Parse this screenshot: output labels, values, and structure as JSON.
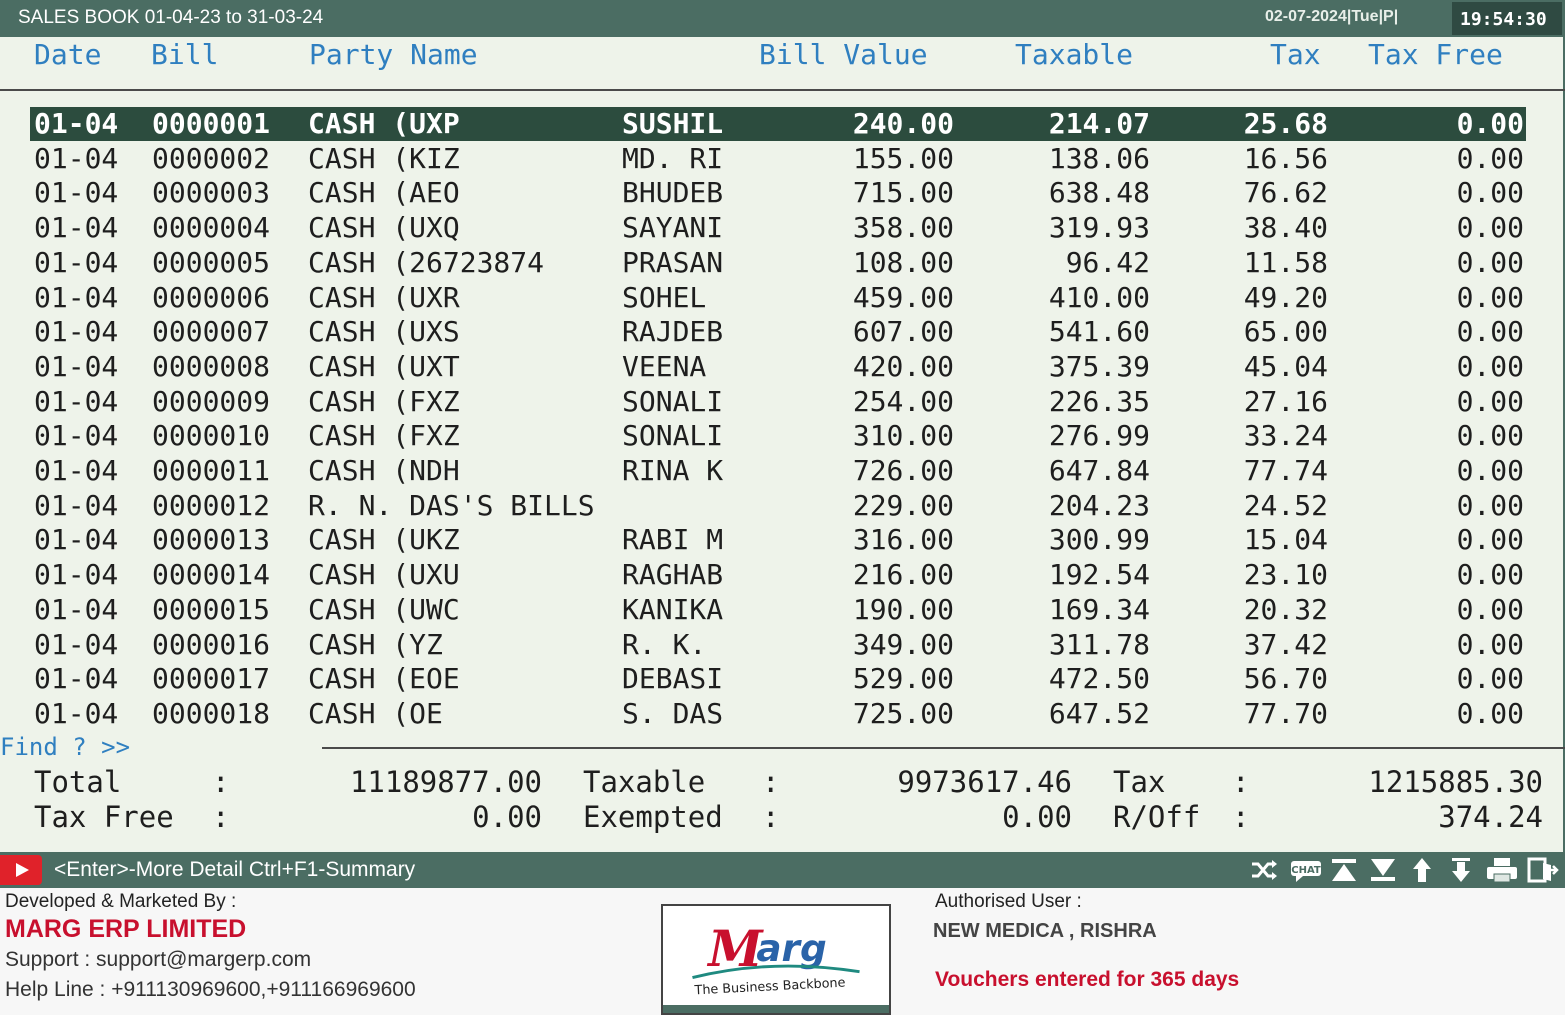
{
  "titlebar": {
    "title": "SALES BOOK 01-04-23 to 31-03-24",
    "date": "02-07-2024|Tue|P|",
    "time": "19:54:30"
  },
  "columns": {
    "date": "Date",
    "bill": "Bill",
    "party": "Party Name",
    "bill_value": "Bill Value",
    "taxable": "Taxable",
    "tax": "Tax",
    "tax_free": "Tax Free"
  },
  "rows": [
    {
      "date": "01-04",
      "bill": "0000001",
      "party": "CASH (UXP",
      "party2": "SUSHIL",
      "bill_value": "240.00",
      "taxable": "214.07",
      "tax": "25.68",
      "tax_free": "0.00"
    },
    {
      "date": "01-04",
      "bill": "0000002",
      "party": "CASH (KIZ",
      "party2": "MD. RI",
      "bill_value": "155.00",
      "taxable": "138.06",
      "tax": "16.56",
      "tax_free": "0.00"
    },
    {
      "date": "01-04",
      "bill": "0000003",
      "party": "CASH (AEO",
      "party2": "BHUDEB",
      "bill_value": "715.00",
      "taxable": "638.48",
      "tax": "76.62",
      "tax_free": "0.00"
    },
    {
      "date": "01-04",
      "bill": "0000004",
      "party": "CASH (UXQ",
      "party2": "SAYANI",
      "bill_value": "358.00",
      "taxable": "319.93",
      "tax": "38.40",
      "tax_free": "0.00"
    },
    {
      "date": "01-04",
      "bill": "0000005",
      "party": "CASH (26723874",
      "party2": "PRASAN",
      "bill_value": "108.00",
      "taxable": "96.42",
      "tax": "11.58",
      "tax_free": "0.00"
    },
    {
      "date": "01-04",
      "bill": "0000006",
      "party": "CASH (UXR",
      "party2": "SOHEL",
      "bill_value": "459.00",
      "taxable": "410.00",
      "tax": "49.20",
      "tax_free": "0.00"
    },
    {
      "date": "01-04",
      "bill": "0000007",
      "party": "CASH (UXS",
      "party2": "RAJDEB",
      "bill_value": "607.00",
      "taxable": "541.60",
      "tax": "65.00",
      "tax_free": "0.00"
    },
    {
      "date": "01-04",
      "bill": "0000008",
      "party": "CASH (UXT",
      "party2": "VEENA",
      "bill_value": "420.00",
      "taxable": "375.39",
      "tax": "45.04",
      "tax_free": "0.00"
    },
    {
      "date": "01-04",
      "bill": "0000009",
      "party": "CASH (FXZ",
      "party2": "SONALI",
      "bill_value": "254.00",
      "taxable": "226.35",
      "tax": "27.16",
      "tax_free": "0.00"
    },
    {
      "date": "01-04",
      "bill": "0000010",
      "party": "CASH (FXZ",
      "party2": "SONALI",
      "bill_value": "310.00",
      "taxable": "276.99",
      "tax": "33.24",
      "tax_free": "0.00"
    },
    {
      "date": "01-04",
      "bill": "0000011",
      "party": "CASH (NDH",
      "party2": "RINA K",
      "bill_value": "726.00",
      "taxable": "647.84",
      "tax": "77.74",
      "tax_free": "0.00"
    },
    {
      "date": "01-04",
      "bill": "0000012",
      "party": "R. N. DAS'S BILLS",
      "party2": "",
      "bill_value": "229.00",
      "taxable": "204.23",
      "tax": "24.52",
      "tax_free": "0.00"
    },
    {
      "date": "01-04",
      "bill": "0000013",
      "party": "CASH (UKZ",
      "party2": "RABI M",
      "bill_value": "316.00",
      "taxable": "300.99",
      "tax": "15.04",
      "tax_free": "0.00"
    },
    {
      "date": "01-04",
      "bill": "0000014",
      "party": "CASH (UXU",
      "party2": "RAGHAB",
      "bill_value": "216.00",
      "taxable": "192.54",
      "tax": "23.10",
      "tax_free": "0.00"
    },
    {
      "date": "01-04",
      "bill": "0000015",
      "party": "CASH (UWC",
      "party2": "KANIKA",
      "bill_value": "190.00",
      "taxable": "169.34",
      "tax": "20.32",
      "tax_free": "0.00"
    },
    {
      "date": "01-04",
      "bill": "0000016",
      "party": "CASH (YZ",
      "party2": "R. K.",
      "bill_value": "349.00",
      "taxable": "311.78",
      "tax": "37.42",
      "tax_free": "0.00"
    },
    {
      "date": "01-04",
      "bill": "0000017",
      "party": "CASH (EOE",
      "party2": "DEBASI",
      "bill_value": "529.00",
      "taxable": "472.50",
      "tax": "56.70",
      "tax_free": "0.00"
    },
    {
      "date": "01-04",
      "bill": "0000018",
      "party": "CASH (OE",
      "party2": "S. DAS",
      "bill_value": "725.00",
      "taxable": "647.52",
      "tax": "77.70",
      "tax_free": "0.00"
    }
  ],
  "selected_row": 0,
  "find": "Find ? >>",
  "totals": {
    "total_label": "Total",
    "total_value": "11189877.00",
    "taxable_label": "Taxable",
    "taxable_value": "9973617.46",
    "tax_label": "Tax",
    "tax_value": "1215885.30",
    "taxfree_label": "Tax Free",
    "taxfree_value": "0.00",
    "exempted_label": "Exempted",
    "exempted_value": "0.00",
    "roff_label": "R/Off",
    "roff_value": "374.24",
    "colon": ":"
  },
  "statusbar": {
    "hint": "<Enter>-More Detail Ctrl+F1-Summary",
    "icons": [
      "shuffle-icon",
      "chat-icon",
      "first-record-icon",
      "last-record-icon",
      "previous-record-icon",
      "next-record-icon",
      "print-icon",
      "exit-icon"
    ],
    "icon_color": "#ffffff",
    "play_color": "#e0222a"
  },
  "footer": {
    "developed_by": "Developed & Marketed By :",
    "company": "MARG ERP LIMITED",
    "support": "Support : support@margerp.com",
    "helpline": "Help Line : +911130969600,+911166969600",
    "logo_text": "Marg",
    "logo_tagline": "The Business Backbone",
    "authorised_label": "Authorised User :",
    "authorised_user": "NEW MEDICA , RISHRA",
    "vouchers_note": "Vouchers entered for 365 days",
    "brand_color": "#c8102e",
    "accent_color": "#1f8a80"
  }
}
